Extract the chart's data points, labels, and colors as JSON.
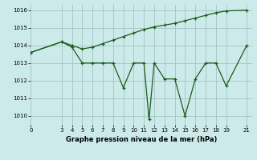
{
  "title": "Graphe pression niveau de la mer (hPa)",
  "background_color": "#cdeaea",
  "grid_color": "#a8c8c8",
  "line_color": "#1a5c1a",
  "x_ticks": [
    0,
    3,
    4,
    5,
    6,
    7,
    8,
    9,
    10,
    11,
    12,
    13,
    14,
    15,
    16,
    17,
    18,
    19,
    21
  ],
  "xlim": [
    0,
    21.5
  ],
  "ylim": [
    1009.5,
    1016.3
  ],
  "y_ticks": [
    1010,
    1011,
    1012,
    1013,
    1014,
    1015,
    1016
  ],
  "series1_x": [
    0,
    3,
    4,
    5,
    6,
    7,
    8,
    9,
    10,
    11,
    11.5,
    12,
    13,
    14,
    15,
    16,
    17,
    18,
    19,
    21
  ],
  "series1_y": [
    1013.6,
    1014.2,
    1013.9,
    1013.0,
    1013.0,
    1013.0,
    1013.0,
    1011.6,
    1013.0,
    1013.0,
    1009.8,
    1013.0,
    1012.1,
    1012.1,
    1010.0,
    1012.1,
    1013.0,
    1013.0,
    1011.7,
    1014.0
  ],
  "series2_x": [
    0,
    3,
    4,
    5,
    6,
    7,
    8,
    9,
    10,
    11,
    12,
    13,
    14,
    15,
    16,
    17,
    18,
    19,
    21
  ],
  "series2_y": [
    1013.6,
    1014.2,
    1014.0,
    1013.8,
    1013.9,
    1014.1,
    1014.3,
    1014.5,
    1014.7,
    1014.9,
    1015.05,
    1015.15,
    1015.25,
    1015.4,
    1015.55,
    1015.7,
    1015.85,
    1015.95,
    1016.0
  ]
}
